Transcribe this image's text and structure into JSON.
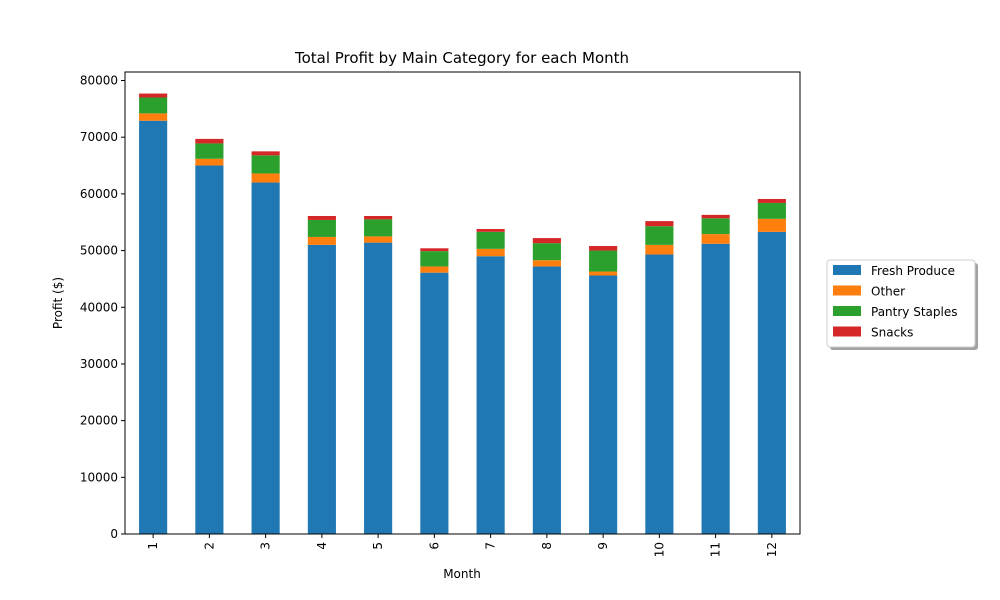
{
  "chart_data": {
    "type": "bar",
    "stacked": true,
    "title": "Total Profit by Main Category for each Month",
    "xlabel": "Month",
    "ylabel": "Profit ($)",
    "categories": [
      "1",
      "2",
      "3",
      "4",
      "5",
      "6",
      "7",
      "8",
      "9",
      "10",
      "11",
      "12"
    ],
    "ylim": [
      0,
      81500
    ],
    "yticks": [
      0,
      10000,
      20000,
      30000,
      40000,
      50000,
      60000,
      70000,
      80000
    ],
    "legend_position": "right",
    "grid": false,
    "series": [
      {
        "name": "Fresh Produce",
        "color": "#1f77b4",
        "values": [
          72900,
          65000,
          62000,
          51000,
          51400,
          46100,
          49000,
          47200,
          45600,
          49300,
          51200,
          53300
        ]
      },
      {
        "name": "Other",
        "color": "#ff7f0e",
        "values": [
          1300,
          1200,
          1600,
          1400,
          1100,
          1100,
          1300,
          1100,
          700,
          1700,
          1700,
          2300
        ]
      },
      {
        "name": "Pantry Staples",
        "color": "#2ca02c",
        "values": [
          2800,
          2700,
          3200,
          3000,
          3000,
          2700,
          3000,
          3000,
          3700,
          3300,
          2800,
          2800
        ]
      },
      {
        "name": "Snacks",
        "color": "#d62728",
        "values": [
          700,
          800,
          700,
          700,
          600,
          500,
          500,
          900,
          800,
          900,
          600,
          700
        ]
      }
    ]
  }
}
